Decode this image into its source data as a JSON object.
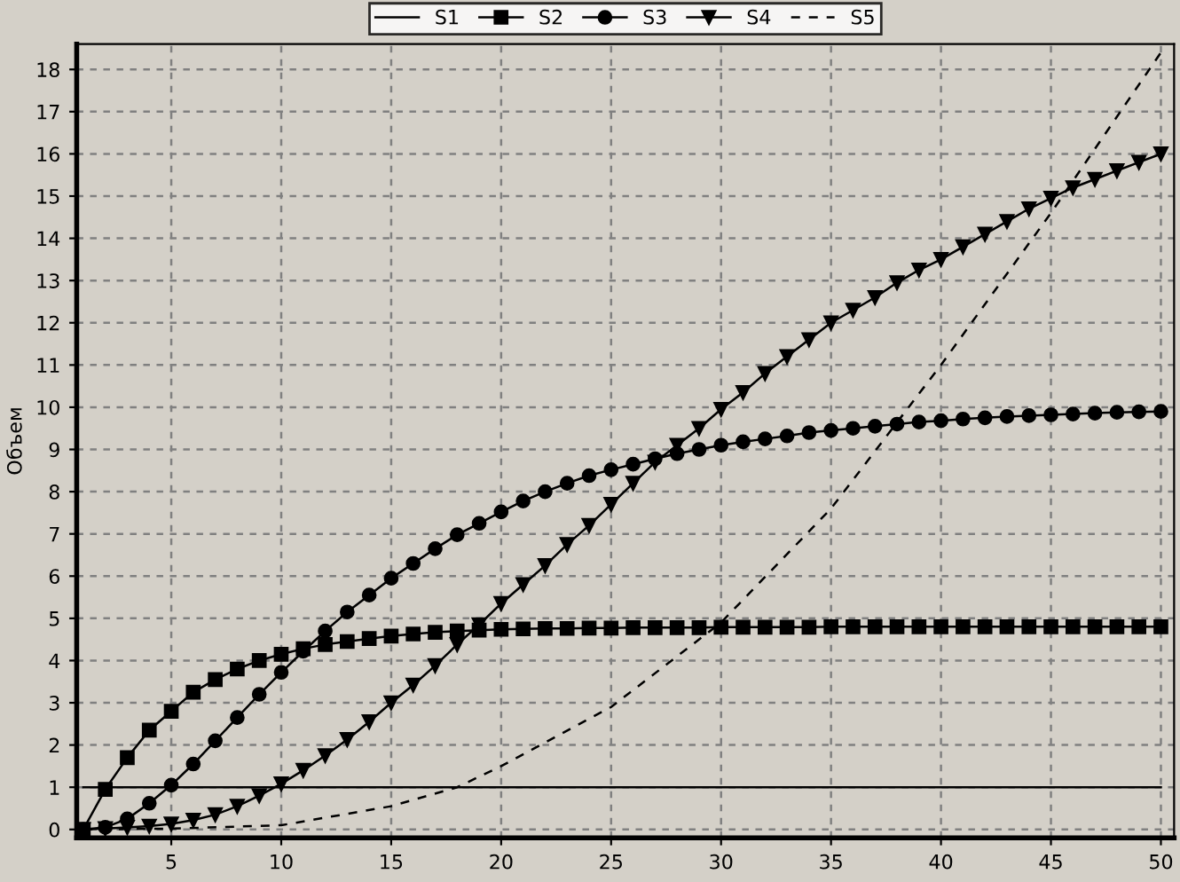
{
  "chart_data": {
    "type": "line",
    "ylabel": "Объем",
    "xlim": [
      0.7,
      50.6
    ],
    "ylim": [
      -0.2,
      18.6
    ],
    "xticks": [
      5,
      10,
      15,
      20,
      25,
      30,
      35,
      40,
      45,
      50
    ],
    "yticks": [
      0,
      1,
      2,
      3,
      4,
      5,
      6,
      7,
      8,
      9,
      10,
      11,
      12,
      13,
      14,
      15,
      16,
      17,
      18
    ],
    "grid": true,
    "legend": "top",
    "series": [
      {
        "name": "S1",
        "color": "#000000",
        "marker": "none",
        "line_style": "solid",
        "x": [
          1,
          50
        ],
        "values": [
          1,
          1
        ]
      },
      {
        "name": "S2",
        "color": "#000000",
        "marker": "square",
        "line_style": "solid",
        "x": [
          1,
          2,
          3,
          4,
          5,
          6,
          7,
          8,
          9,
          10,
          11,
          12,
          13,
          14,
          15,
          16,
          17,
          18,
          19,
          20,
          21,
          22,
          23,
          24,
          25,
          26,
          27,
          28,
          29,
          30,
          31,
          32,
          33,
          34,
          35,
          36,
          37,
          38,
          39,
          40,
          41,
          42,
          43,
          44,
          45,
          46,
          47,
          48,
          49,
          50
        ],
        "values": [
          0,
          0.95,
          1.7,
          2.35,
          2.8,
          3.25,
          3.55,
          3.8,
          4.0,
          4.15,
          4.28,
          4.38,
          4.45,
          4.52,
          4.58,
          4.63,
          4.67,
          4.7,
          4.72,
          4.74,
          4.75,
          4.76,
          4.76,
          4.77,
          4.77,
          4.78,
          4.78,
          4.78,
          4.78,
          4.79,
          4.79,
          4.79,
          4.79,
          4.79,
          4.8,
          4.8,
          4.8,
          4.8,
          4.8,
          4.8,
          4.8,
          4.8,
          4.8,
          4.8,
          4.8,
          4.8,
          4.8,
          4.8,
          4.8,
          4.8
        ]
      },
      {
        "name": "S3",
        "color": "#000000",
        "marker": "circle",
        "line_style": "solid",
        "x": [
          1,
          2,
          3,
          4,
          5,
          6,
          7,
          8,
          9,
          10,
          11,
          12,
          13,
          14,
          15,
          16,
          17,
          18,
          19,
          20,
          21,
          22,
          23,
          24,
          25,
          26,
          27,
          28,
          29,
          30,
          31,
          32,
          33,
          34,
          35,
          36,
          37,
          38,
          39,
          40,
          41,
          42,
          43,
          44,
          45,
          46,
          47,
          48,
          49,
          50
        ],
        "values": [
          0,
          0.05,
          0.25,
          0.62,
          1.05,
          1.55,
          2.1,
          2.65,
          3.2,
          3.72,
          4.22,
          4.7,
          5.15,
          5.55,
          5.95,
          6.3,
          6.65,
          6.98,
          7.25,
          7.52,
          7.78,
          8.0,
          8.2,
          8.38,
          8.52,
          8.65,
          8.78,
          8.9,
          9.0,
          9.1,
          9.18,
          9.25,
          9.32,
          9.4,
          9.45,
          9.5,
          9.55,
          9.6,
          9.65,
          9.68,
          9.72,
          9.75,
          9.78,
          9.8,
          9.82,
          9.84,
          9.86,
          9.88,
          9.89,
          9.9
        ]
      },
      {
        "name": "S4",
        "color": "#000000",
        "marker": "triangle",
        "line_style": "solid",
        "x": [
          1,
          2,
          3,
          4,
          5,
          6,
          7,
          8,
          9,
          10,
          11,
          12,
          13,
          14,
          15,
          16,
          17,
          18,
          19,
          20,
          21,
          22,
          23,
          24,
          25,
          26,
          27,
          28,
          29,
          30,
          31,
          32,
          33,
          34,
          35,
          36,
          37,
          38,
          39,
          40,
          41,
          42,
          43,
          44,
          45,
          46,
          47,
          48,
          49,
          50
        ],
        "values": [
          0,
          0.02,
          0.05,
          0.08,
          0.13,
          0.22,
          0.35,
          0.55,
          0.8,
          1.08,
          1.4,
          1.75,
          2.13,
          2.55,
          3.0,
          3.42,
          3.88,
          4.38,
          4.85,
          5.35,
          5.8,
          6.25,
          6.75,
          7.2,
          7.7,
          8.2,
          8.7,
          9.1,
          9.5,
          9.95,
          10.35,
          10.8,
          11.2,
          11.6,
          12.0,
          12.3,
          12.6,
          12.95,
          13.25,
          13.5,
          13.8,
          14.1,
          14.4,
          14.7,
          14.95,
          15.2,
          15.4,
          15.6,
          15.8,
          16.0
        ]
      },
      {
        "name": "S5",
        "color": "#000000",
        "marker": "none",
        "line_style": "dashed",
        "x": [
          1,
          5,
          10,
          15,
          18,
          20,
          25,
          30,
          35,
          40,
          45,
          50
        ],
        "values": [
          0,
          0.02,
          0.1,
          0.55,
          1.0,
          1.5,
          2.9,
          4.9,
          7.6,
          11.0,
          14.6,
          18.4
        ]
      }
    ]
  }
}
